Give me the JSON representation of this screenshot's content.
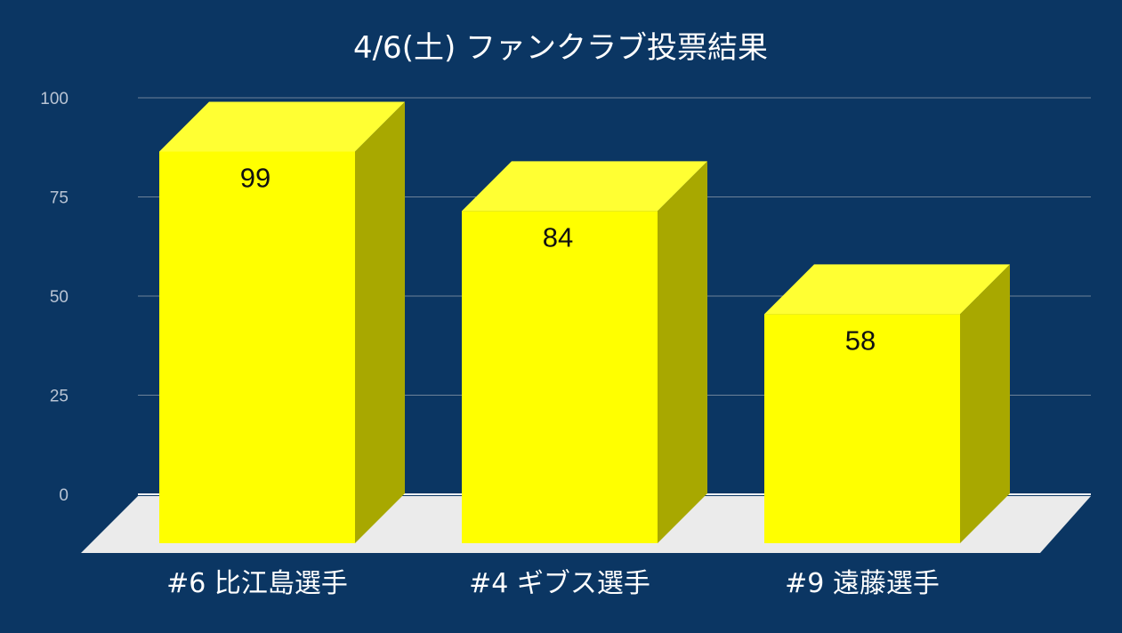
{
  "colors": {
    "background": "#0b3663",
    "bar_front": "#ffff00",
    "bar_top": "#ffff33",
    "bar_side": "#a8a800",
    "floor": "#ebebeb",
    "gridline": "#6d8299",
    "tick_label": "#b9c4d4",
    "title": "#ffffff"
  },
  "chart_data": {
    "type": "bar",
    "style": "3d",
    "title": "4/6(土)  ファンクラブ投票結果",
    "categories": [
      "#6 比江島選手",
      "#4 ギブス選手",
      "#9 遠藤選手"
    ],
    "values": [
      99,
      84,
      58
    ],
    "data_labels": [
      "99",
      "84",
      "58"
    ],
    "yticks": [
      0,
      25,
      50,
      75,
      100
    ],
    "ylim": [
      0,
      100
    ],
    "grid": true,
    "legend": "none"
  }
}
